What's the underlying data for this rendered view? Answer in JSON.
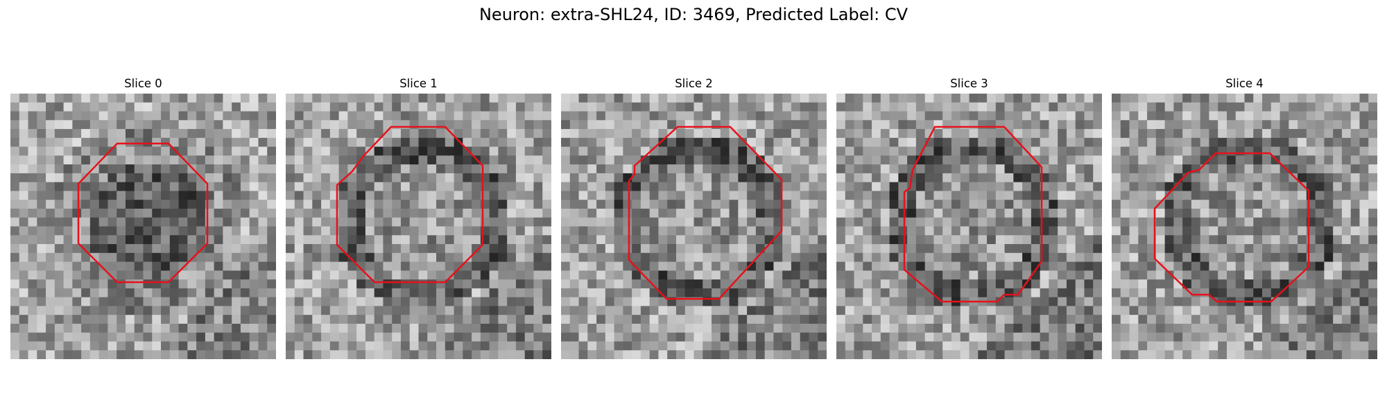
{
  "figure": {
    "title": "Neuron: extra-SHL24, ID: 3469, Predicted Label: CV",
    "contour_color": "#e8101a",
    "colormap": "grayscale"
  },
  "slices": [
    {
      "title": "Slice 0",
      "darkness": "center"
    },
    {
      "title": "Slice 1",
      "darkness": "ring"
    },
    {
      "title": "Slice 2",
      "darkness": "ring"
    },
    {
      "title": "Slice 3",
      "darkness": "ring"
    },
    {
      "title": "Slice 4",
      "darkness": "ring"
    }
  ]
}
